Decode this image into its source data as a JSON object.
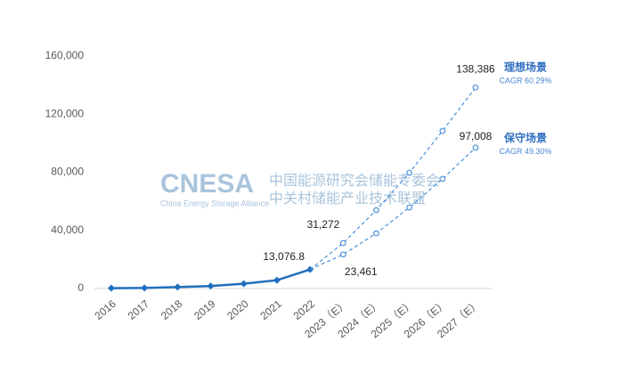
{
  "chart_data": {
    "type": "line",
    "x": [
      "2016",
      "2017",
      "2018",
      "2019",
      "2020",
      "2021",
      "2022",
      "2023（E）",
      "2024（E）",
      "2025（E）",
      "2026（E）",
      "2027（E）"
    ],
    "series": [
      {
        "color": "#1f6fbd",
        "dashed": false,
        "values": [
          200,
          390,
          1000,
          1700,
          3300,
          5700,
          13076.8,
          null,
          null,
          null,
          null,
          null
        ],
        "value_labels": [
          null,
          null,
          null,
          null,
          null,
          null,
          "13,076.8",
          null,
          null,
          null,
          null,
          null
        ]
      },
      {
        "name": "理想场景",
        "note": "CAGR 60.29%",
        "color": "#4a90d9",
        "dashed": true,
        "values": [
          null,
          null,
          null,
          null,
          null,
          null,
          13076.8,
          31272,
          53950,
          79700,
          108500,
          138386
        ],
        "value_labels": [
          null,
          null,
          null,
          null,
          null,
          null,
          null,
          "31,272",
          null,
          null,
          null,
          "138,386"
        ]
      },
      {
        "name": "保守场景",
        "note": "CAGR 49.30%",
        "color": "#4a90d9",
        "dashed": true,
        "values": [
          null,
          null,
          null,
          null,
          null,
          null,
          13076.8,
          23461,
          38000,
          55800,
          75400,
          97008
        ],
        "value_labels": [
          null,
          null,
          null,
          null,
          null,
          null,
          null,
          "23,461",
          null,
          null,
          null,
          "97,008"
        ]
      }
    ],
    "ylim": [
      0,
      160000
    ],
    "yticks": [
      0,
      {
        "value": 40000,
        "label": "40,000"
      },
      {
        "value": 80000,
        "label": "80,000"
      },
      {
        "value": 120000,
        "label": "120,000"
      },
      {
        "value": 160000,
        "label": "160,000"
      }
    ],
    "watermark": {
      "logo": "CNESA",
      "org_cn_1": "中国能源研究会储能专委会",
      "org_cn_2": "中关村储能产业技术联盟",
      "org_en": "China Energy Storage Alliance"
    }
  }
}
